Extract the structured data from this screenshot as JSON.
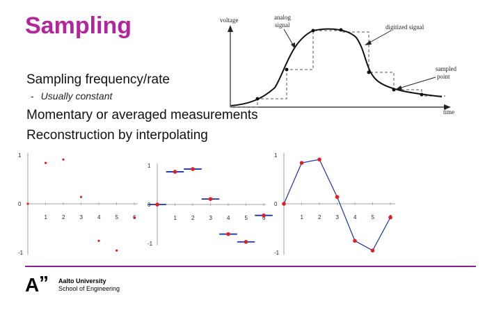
{
  "slide": {
    "title": "Sampling",
    "bullets": [
      "Sampling frequency/rate",
      "Momentary or averaged measurements",
      "Reconstruction by interpolating"
    ],
    "sub_bullet": "Usually constant",
    "sub_bullet_marker": "-"
  },
  "figure_signal": {
    "labels": {
      "voltage": "voltage",
      "analog": "analog",
      "signal": "signal",
      "digitized": "digitized signal",
      "sampled": "sampled",
      "point": "point",
      "time": "time"
    }
  },
  "plots": {
    "y_ticks": [
      "1",
      "0",
      "-1"
    ],
    "x_ticks": [
      "1",
      "2",
      "3",
      "4",
      "5",
      "6"
    ],
    "sample_values": [
      0,
      0.84,
      0.91,
      0.14,
      -0.76,
      -0.96,
      -0.28
    ],
    "colors": {
      "points": "#e02020",
      "lines": "#1a2fb0",
      "axes": "#888888"
    }
  },
  "logo": {
    "mark": "A",
    "quote": "”",
    "line1": "Aalto University",
    "line2": "School of Engineering"
  },
  "colors": {
    "title": "#b0279a",
    "divider": "#8a1d8f"
  }
}
